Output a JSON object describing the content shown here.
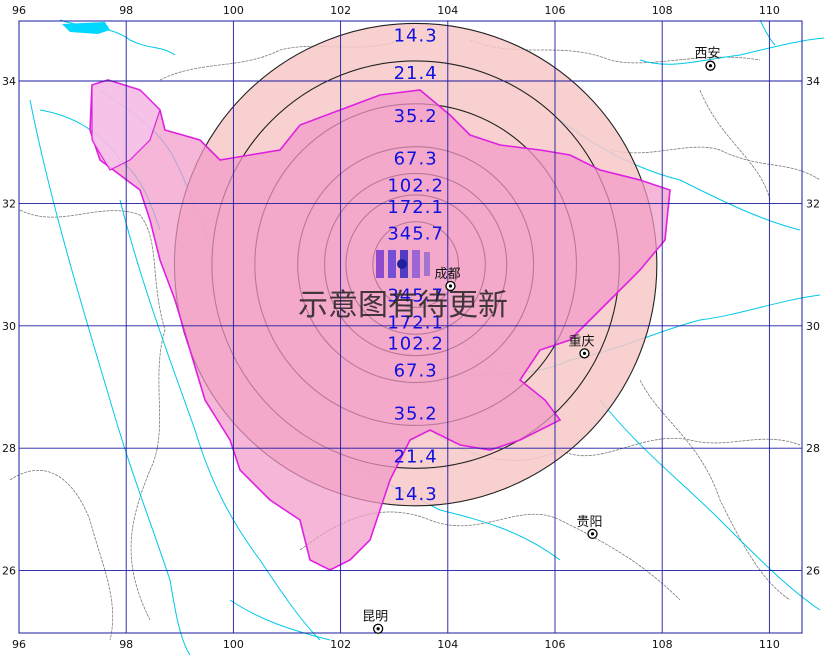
{
  "map": {
    "lon_ticks_top": [
      "96",
      "98",
      "100",
      "102",
      "104",
      "106",
      "108",
      "110"
    ],
    "lon_ticks_bottom": [
      "96",
      "98",
      "100",
      "102",
      "104",
      "106",
      "108",
      "110"
    ],
    "lat_ticks_left": [
      "34",
      "32",
      "30",
      "28",
      "26"
    ],
    "lat_ticks_right": [
      "34",
      "32",
      "30",
      "28",
      "26"
    ],
    "epicenter": {
      "lon": 103.4,
      "lat": 31.0
    },
    "rings": [
      {
        "radius_deg": 4.5,
        "label_top": "14.3",
        "label_bottom": "14.3"
      },
      {
        "radius_deg": 3.8,
        "label_top": "21.4",
        "label_bottom": "21.4"
      },
      {
        "radius_deg": 3.0,
        "label_top": "35.2",
        "label_bottom": "35.2"
      },
      {
        "radius_deg": 2.2,
        "label_top": "67.3",
        "label_bottom": "67.3"
      },
      {
        "radius_deg": 1.7,
        "label_top": "102.2",
        "label_bottom": "102.2"
      },
      {
        "radius_deg": 1.3,
        "label_top": "172.1",
        "label_bottom": "172.1"
      },
      {
        "radius_deg": 0.8,
        "label_top": "345.7",
        "label_bottom": "345.7"
      }
    ],
    "cities": [
      {
        "name": "西安",
        "lon": 108.9,
        "lat": 34.25
      },
      {
        "name": "成都",
        "lon": 104.05,
        "lat": 30.65
      },
      {
        "name": "重庆",
        "lon": 106.55,
        "lat": 29.55
      },
      {
        "name": "贵阳",
        "lon": 106.7,
        "lat": 26.6
      },
      {
        "name": "昆明",
        "lon": 102.7,
        "lat": 25.05
      }
    ],
    "watermark": "示意图有待更新",
    "colors": {
      "ring_fill": "#f7c8c8",
      "sichuan_fill": "#f39ac8",
      "province_border": "#e020e0",
      "river": "#00c8e8",
      "grid": "#1a1aa0",
      "label": "#1010e0"
    }
  }
}
